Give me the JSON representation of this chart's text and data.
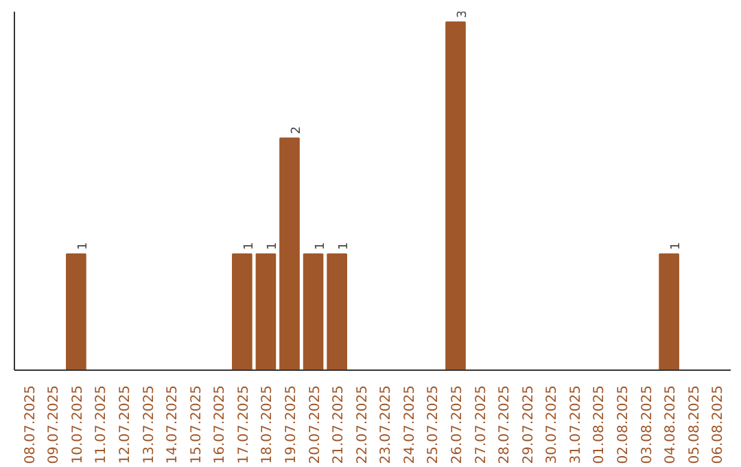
{
  "chart_data": {
    "type": "bar",
    "categories": [
      "08.07.2025",
      "09.07.2025",
      "10.07.2025",
      "11.07.2025",
      "12.07.2025",
      "13.07.2025",
      "14.07.2025",
      "15.07.2025",
      "16.07.2025",
      "17.07.2025",
      "18.07.2025",
      "19.07.2025",
      "20.07.2025",
      "21.07.2025",
      "22.07.2025",
      "23.07.2025",
      "24.07.2025",
      "25.07.2025",
      "26.07.2025",
      "27.07.2025",
      "28.07.2025",
      "29.07.2025",
      "30.07.2025",
      "31.07.2025",
      "01.08.2025",
      "02.08.2025",
      "03.08.2025",
      "04.08.2025",
      "05.08.2025",
      "06.08.2025"
    ],
    "values": [
      0,
      0,
      1,
      0,
      0,
      0,
      0,
      0,
      0,
      1,
      1,
      2,
      1,
      1,
      0,
      0,
      0,
      0,
      3,
      0,
      0,
      0,
      0,
      0,
      0,
      0,
      0,
      1,
      0,
      0
    ],
    "value_labels": [
      null,
      null,
      "1",
      null,
      null,
      null,
      null,
      null,
      null,
      "1",
      "1",
      "2",
      "1",
      "1",
      null,
      null,
      null,
      null,
      "3",
      null,
      null,
      null,
      null,
      null,
      null,
      null,
      null,
      "1",
      null,
      null
    ],
    "color": "#a0572a",
    "tick_labels": "x",
    "grid": false
  }
}
